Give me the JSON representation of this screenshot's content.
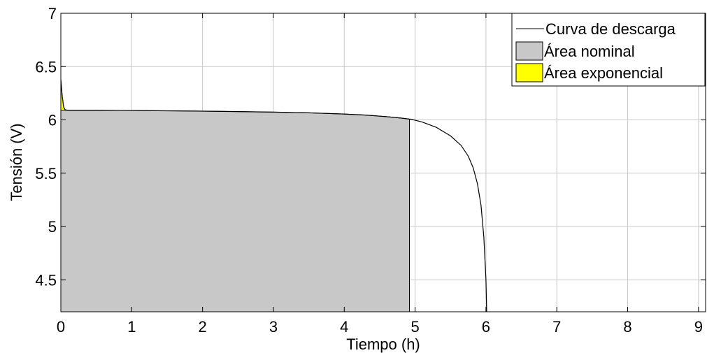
{
  "chart_data": {
    "type": "area",
    "xlabel": "Tiempo (h)",
    "ylabel": "Tensión (V)",
    "xlim": [
      0,
      9.1
    ],
    "ylim": [
      4.2,
      7
    ],
    "x_ticks": [
      0,
      1,
      2,
      3,
      4,
      5,
      6,
      7,
      8,
      9
    ],
    "x_tick_labels": [
      "0",
      "1",
      "2",
      "3",
      "4",
      "5",
      "6",
      "7",
      "8",
      "9"
    ],
    "y_ticks": [
      4.5,
      5,
      5.5,
      6,
      6.5,
      7
    ],
    "y_tick_labels": [
      "4.5",
      "5",
      "5.5",
      "6",
      "6.5",
      "7"
    ],
    "grid": true,
    "legend_position": "top-right",
    "colors": {
      "curve": "#000000",
      "nominal": "#c8c8c8",
      "exponential": "#ffff00"
    },
    "series": [
      {
        "name": "Curva de descarga",
        "kind": "line",
        "x": [
          0,
          0.01,
          0.02,
          0.04,
          0.06,
          0.1,
          0.5,
          1,
          1.5,
          2,
          2.5,
          3,
          3.5,
          4,
          4.3,
          4.6,
          4.8,
          4.95,
          5.1,
          5.3,
          5.5,
          5.65,
          5.75,
          5.82,
          5.88,
          5.93,
          5.97,
          6,
          6.01
        ],
        "y": [
          6.38,
          6.3,
          6.22,
          6.12,
          6.095,
          6.09,
          6.09,
          6.088,
          6.085,
          6.082,
          6.078,
          6.073,
          6.066,
          6.055,
          6.045,
          6.03,
          6.017,
          6.005,
          5.98,
          5.93,
          5.85,
          5.76,
          5.66,
          5.55,
          5.4,
          5.2,
          4.9,
          4.5,
          4.2
        ]
      },
      {
        "name": "Área nominal",
        "kind": "area",
        "x": [
          0,
          0.5,
          1,
          1.5,
          2,
          2.5,
          3,
          3.5,
          4,
          4.3,
          4.6,
          4.8,
          4.92
        ],
        "y": [
          6.09,
          6.09,
          6.088,
          6.085,
          6.082,
          6.078,
          6.073,
          6.066,
          6.055,
          6.045,
          6.03,
          6.017,
          6.007
        ],
        "baseline": 4.2
      },
      {
        "name": "Área exponencial",
        "kind": "area",
        "x": [
          0,
          0.01,
          0.02,
          0.04,
          0.06
        ],
        "y": [
          6.38,
          6.3,
          6.22,
          6.12,
          6.095
        ],
        "baseline": 6.09
      }
    ]
  }
}
